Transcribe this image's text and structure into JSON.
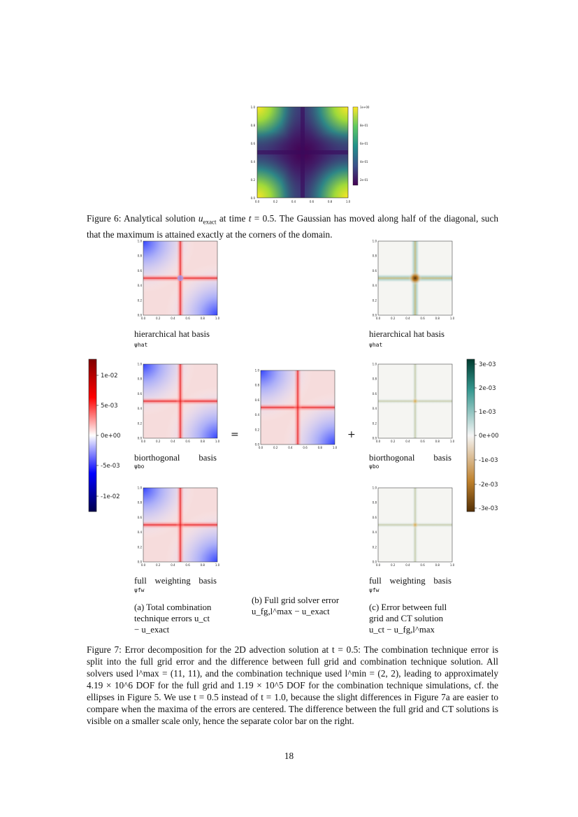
{
  "figure6": {
    "image_alt": "heatmap of analytical solution",
    "axis_ticks": [
      "0.0",
      "0.2",
      "0.4",
      "0.6",
      "0.8",
      "1.0"
    ],
    "colorbar_ticks": [
      "1e+00",
      "8e-01",
      "6e-01",
      "4e-01",
      "2e-01"
    ],
    "caption": "Figure 6: Analytical solution u_exact at time t = 0.5. The Gaussian has moved along half of the diagonal, such that the maximum is attained exactly at the corners of the domain."
  },
  "figure7": {
    "axis_ticks": [
      "0.0",
      "0.2",
      "0.4",
      "0.6",
      "0.8",
      "1.0"
    ],
    "left_colorbar_ticks": [
      "1e-02",
      "5e-03",
      "0e+00",
      "-5e-03",
      "-1e-02"
    ],
    "right_colorbar_ticks": [
      "3e-03",
      "2e-03",
      "1e-03",
      "0e+00",
      "-1e-03",
      "-2e-03",
      "-3e-03"
    ],
    "equals_sign": "=",
    "plus_sign": "+",
    "labels": {
      "hat": "hierarchical hat basis",
      "hat_sym": "ψhat",
      "bo": "biorthogonal basis",
      "bo_sym": "ψbo",
      "fw": "full weighting basis",
      "fw_sym": "ψfw"
    },
    "subcaption_a": "(a) Total combination technique errors u_ct − u_exact",
    "subcaption_b": "(b) Full grid solver error u_fg,l^max − u_exact",
    "subcaption_c": "(c) Error between full grid and CT solution u_ct − u_fg,l^max",
    "caption": "Figure 7: Error decomposition for the 2D advection solution at t = 0.5: The combination technique error is split into the full grid error and the difference between full grid and combination technique solution. All solvers used l^max = (11, 11), and the combination technique used l^min = (2, 2), leading to approximately 4.19 × 10^6 DOF for the full grid and 1.19 × 10^5 DOF for the combination technique simulations, cf. the ellipses in Figure 5. We use t = 0.5 instead of t = 1.0, because the slight differences in Figure 7a are easier to compare when the maxima of the errors are centered. The difference between the full grid and CT solutions is visible on a smaller scale only, hence the separate color bar on the right."
  },
  "page_number": "18"
}
